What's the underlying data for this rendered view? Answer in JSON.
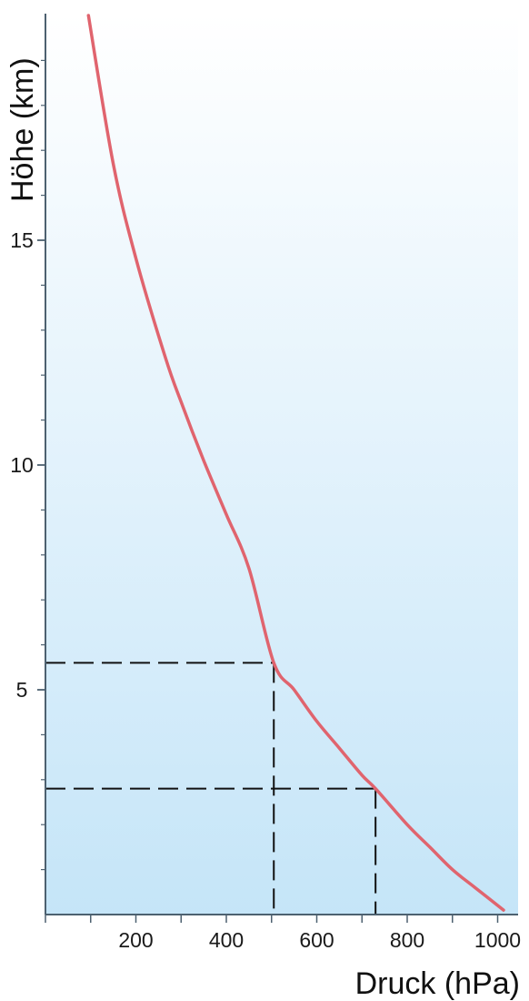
{
  "chart_data": {
    "type": "line",
    "title": "",
    "xlabel": "Druck (hPa)",
    "ylabel": "Höhe (km)",
    "xlim": [
      0,
      1050
    ],
    "ylim": [
      0,
      20
    ],
    "x_ticks": [
      200,
      400,
      600,
      800,
      1000
    ],
    "y_ticks": [
      5,
      10,
      15
    ],
    "series": [
      {
        "x": [
          95,
          150,
          200,
          265,
          300,
          350,
          400,
          450,
          505,
          550,
          600,
          650,
          700,
          730,
          800,
          850,
          900,
          950,
          1013
        ],
        "y": [
          20,
          16.7,
          14.6,
          12.4,
          11.4,
          10.1,
          8.9,
          7.7,
          5.6,
          5.0,
          4.3,
          3.7,
          3.1,
          2.8,
          2.0,
          1.5,
          1.0,
          0.6,
          0.1
        ],
        "color": "#e0646e"
      }
    ],
    "reference_points": [
      {
        "x": 505,
        "y": 5.6
      },
      {
        "x": 730,
        "y": 2.8
      }
    ],
    "grid": false,
    "background_gradient": [
      "#ffffff",
      "#c5e5f8"
    ],
    "axis_color": "#4d6170"
  }
}
